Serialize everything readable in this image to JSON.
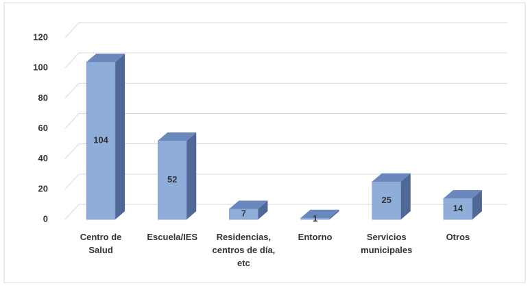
{
  "chart_data": {
    "type": "bar3d",
    "categories": [
      "Centro de Salud",
      "Escuela/IES",
      "Residencias, centros de día, etc",
      "Entorno",
      "Servicios municipales",
      "Otros"
    ],
    "values": [
      104,
      52,
      7,
      1,
      25,
      14
    ],
    "color": "#8fadd9",
    "ylim": [
      0,
      120
    ],
    "yticks": [
      0,
      20,
      40,
      60,
      80,
      100,
      120
    ],
    "grid": true
  }
}
